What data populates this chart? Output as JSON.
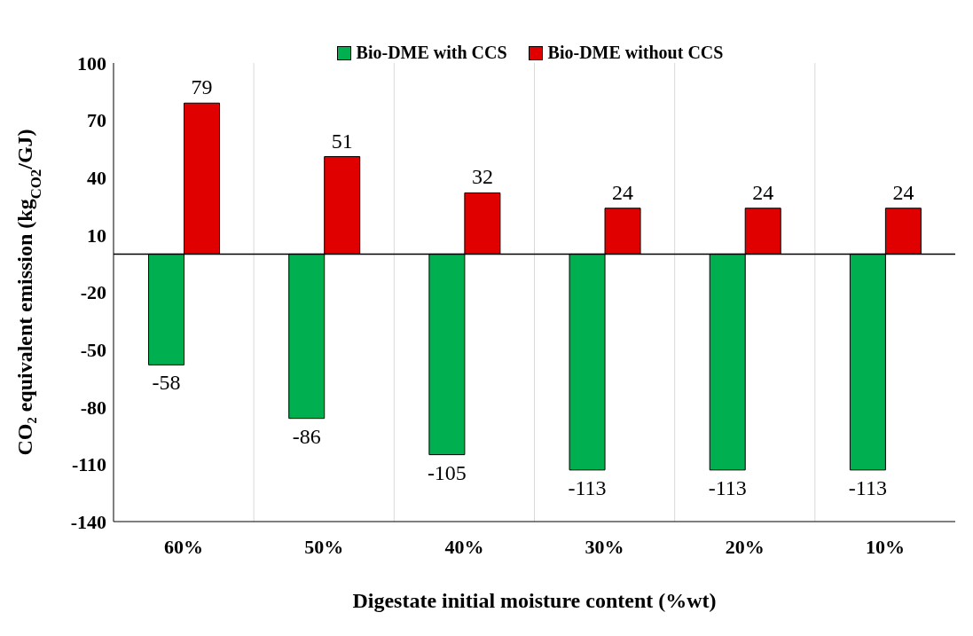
{
  "chart_data": {
    "type": "bar",
    "xlabel": "Digestate initial moisture content (%wt)",
    "ylabel": "CO₂ equivalent emission (kg$_{CO2}$/GJ)",
    "categories": [
      "60%",
      "50%",
      "40%",
      "30%",
      "20%",
      "10%"
    ],
    "series": [
      {
        "name": "Bio-DME with CCS",
        "color": "#00b050",
        "values": [
          -58,
          -86,
          -105,
          -113,
          -113,
          -113
        ]
      },
      {
        "name": "Bio-DME without CCS",
        "color": "#e00000",
        "values": [
          79,
          51,
          32,
          24,
          24,
          24
        ]
      }
    ],
    "ylim": [
      -140,
      100
    ],
    "yticks": [
      -140,
      -110,
      -80,
      -50,
      -20,
      10,
      40,
      70,
      100
    ],
    "grid": "x",
    "legend": "top",
    "data_labels": true
  }
}
